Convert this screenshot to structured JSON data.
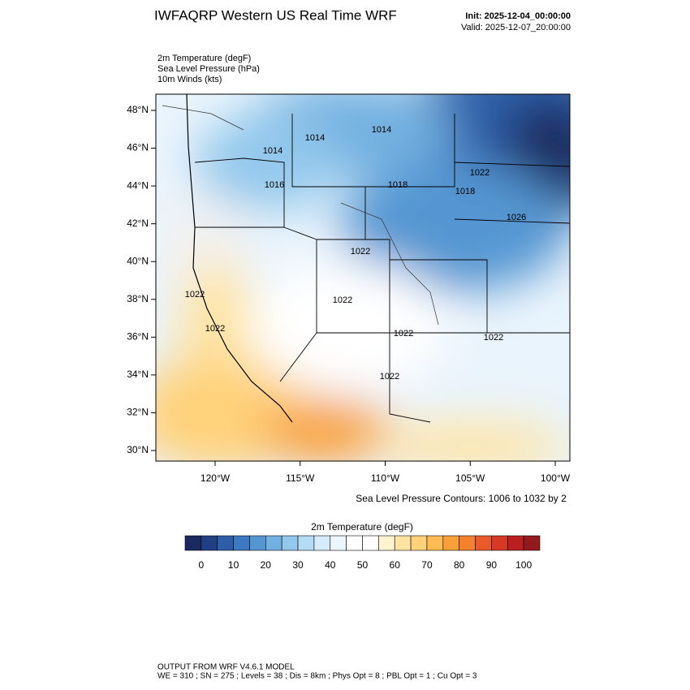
{
  "header": {
    "title": "IWFAQRP Western US Real Time WRF",
    "init": "Init: 2025-12-04_00:00:00",
    "valid": "Valid: 2025-12-07_20:00:00"
  },
  "fields": [
    "2m Temperature   (degF)",
    "Sea Level Pressure   (hPa)",
    "10m Winds   (kts)"
  ],
  "map": {
    "lat_ticks": [
      {
        "value": 30,
        "label": "30°N"
      },
      {
        "value": 32,
        "label": "32°N"
      },
      {
        "value": 34,
        "label": "34°N"
      },
      {
        "value": 36,
        "label": "36°N"
      },
      {
        "value": 38,
        "label": "38°N"
      },
      {
        "value": 40,
        "label": "40°N"
      },
      {
        "value": 42,
        "label": "42°N"
      },
      {
        "value": 44,
        "label": "44°N"
      },
      {
        "value": 46,
        "label": "46°N"
      },
      {
        "value": 48,
        "label": "48°N"
      }
    ],
    "lon_ticks": [
      {
        "value": -120,
        "label": "120°W"
      },
      {
        "value": -115,
        "label": "115°W"
      },
      {
        "value": -110,
        "label": "110°W"
      },
      {
        "value": -105,
        "label": "105°W"
      },
      {
        "value": -100,
        "label": "100°W"
      }
    ],
    "contour_labels": [
      "1014",
      "1014",
      "1014",
      "1016",
      "1018",
      "1018",
      "1022",
      "1026",
      "1022",
      "1022",
      "1022",
      "1022",
      "1022",
      "1022",
      "1022"
    ],
    "contour_note": "Sea Level Pressure Contours: 1006 to 1032 by 2"
  },
  "colorbar": {
    "title": "2m Temperature  (degF)",
    "colors": [
      "#1a2a5e",
      "#213f85",
      "#2e5ea8",
      "#3d79c0",
      "#5596d2",
      "#72b0e0",
      "#93c8ec",
      "#b5dcf5",
      "#d6ecfa",
      "#eef6fd",
      "#ffffff",
      "#ffffff",
      "#fff3d0",
      "#ffe4a3",
      "#ffd27a",
      "#ffbc55",
      "#f9a03b",
      "#f3812d",
      "#e85a28",
      "#d63a24",
      "#bc1f22",
      "#951a1d"
    ],
    "ticks": [
      0,
      10,
      20,
      30,
      40,
      50,
      60,
      70,
      80,
      90,
      100
    ]
  },
  "footer": {
    "line1": "OUTPUT FROM WRF V4.6.1 MODEL",
    "line2": "WE = 310 ; SN = 275 ; Levels = 38 ; Dis = 8km ; Phys Opt = 8 ; PBL Opt = 1 ; Cu Opt = 3"
  }
}
